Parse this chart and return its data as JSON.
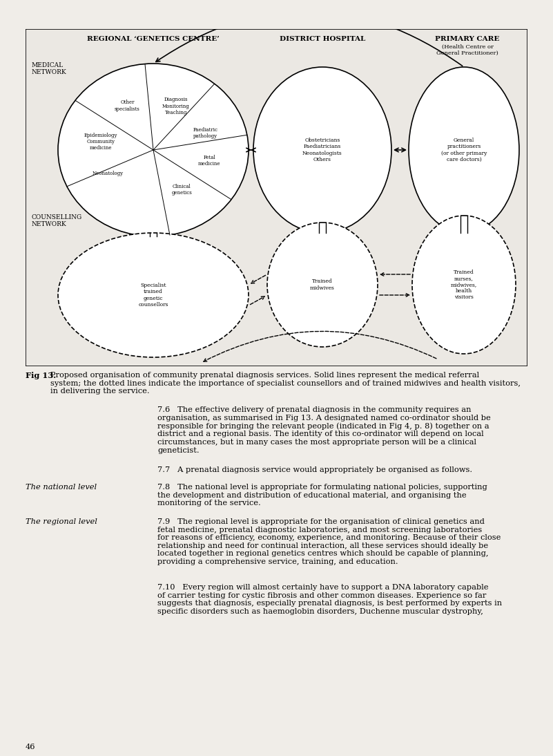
{
  "bg_color": "#f0ede8",
  "diagram_bg": "#ebe8e3",
  "title_col1": "REGIONAL ‘GENETICS CENTRE’",
  "title_col2": "DISTRICT HOSPITAL",
  "title_col3": "PRIMARY CARE",
  "title_col3_sub": "(Health Centre or\nGeneral Practitioner)",
  "label_medical": "MEDICAL\nNETWORK",
  "label_counselling": "COUNSELLING\nNETWORK",
  "district_label": "Obstetricians\nPaediatricians\nNeonatologists\nOthers",
  "primary_label": "General\npractitioners\n(or other primary\ncare doctors)",
  "counsellor_label": "Specialist\ntrained\ngenetic\ncounsellors",
  "midwives_label": "Trained\nmidwives",
  "nurses_label": "Trained\nnurses,\nmidwives,\nhealth\nvisitors",
  "fig_caption_bold": "Fig 13.",
  "fig_caption": " Proposed organisation of community prenatal diagnosis services. Solid lines represent the medical referral system; the dotted lines indicate the importance of specialist counsellors and of trained midwives and health visitors, in delivering the service.",
  "para_76_indent": "7.6",
  "para_76_text": "   The effective delivery of prenatal diagnosis in the community requires an organisation, as summarised in Fig 13. A designated named co-ordinator should be responsible for bringing the relevant people (indicated in Fig 4, p. 8) together on a district and a regional basis. The identity of this co-ordinator will depend on local circumstances, but in many cases the most appropriate person will be a clinical geneticist.",
  "para_77": "7.7   A prenatal diagnosis service would appropriately be organised as follows.",
  "label_national": "The national level",
  "para_78_indent": "7.8",
  "para_78_text": "   The national level is appropriate for formulating national policies, supporting the development and distribution of educational material, and organising the monitoring of the service.",
  "label_regional": "The regional level",
  "para_79_indent": "7.9",
  "para_79_text": "   The regional level is appropriate for the organisation of clinical genetics and fetal medicine, prenatal diagnostic laboratories, and most screening laboratories for reasons of efficiency, economy, experience, and monitoring. Because of their close relationship and need for continual interaction, all these services should ideally be located together in regional genetics centres which should be capable of planning, providing a comprehensive service, training, and education.",
  "para_710_indent": "7.10",
  "para_710_text": "   Every region will almost certainly have to support a DNA laboratory capable of carrier testing for cystic fibrosis and other common diseases. Experience so far suggests that diagnosis, especially prenatal diagnosis, is best performed by experts in specific disorders such as haemoglobin disorders, Duchenne muscular dystrophy,",
  "page_num": "46"
}
